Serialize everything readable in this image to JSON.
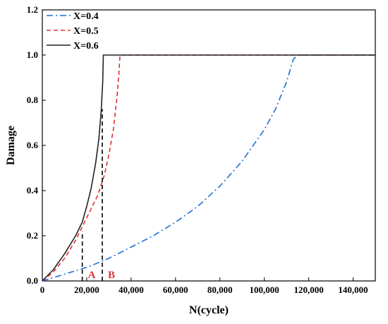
{
  "chart_data": {
    "type": "line",
    "title": "",
    "xlabel": "N(cycle)",
    "ylabel": "Damage",
    "xlim": [
      0,
      150000
    ],
    "ylim": [
      0,
      1.2
    ],
    "xticks": [
      0,
      20000,
      40000,
      60000,
      80000,
      100000,
      120000,
      140000
    ],
    "xtick_labels": [
      "0",
      "20,000",
      "40,000",
      "60,000",
      "80,000",
      "100,000",
      "120,000",
      "140,000"
    ],
    "yticks": [
      0,
      0.2,
      0.4,
      0.6,
      0.8,
      1.0,
      1.2
    ],
    "ytick_labels": [
      "0.0",
      "0.2",
      "0.4",
      "0.6",
      "0.8",
      "1.0",
      "1.2"
    ],
    "legend_position": "top-left",
    "grid": false,
    "series": [
      {
        "name": "X=0.4",
        "color": "#1f6fd1",
        "dash": "dash-dot",
        "points": [
          [
            0,
            0
          ],
          [
            10000,
            0.03
          ],
          [
            20000,
            0.06
          ],
          [
            30000,
            0.1
          ],
          [
            40000,
            0.15
          ],
          [
            50000,
            0.2
          ],
          [
            60000,
            0.26
          ],
          [
            70000,
            0.33
          ],
          [
            80000,
            0.42
          ],
          [
            90000,
            0.53
          ],
          [
            100000,
            0.67
          ],
          [
            105000,
            0.76
          ],
          [
            110000,
            0.88
          ],
          [
            113000,
            0.98
          ],
          [
            115000,
            1.0
          ],
          [
            150000,
            1.0
          ]
        ]
      },
      {
        "name": "X=0.5",
        "color": "#e03030",
        "dash": "dashed",
        "points": [
          [
            0,
            0
          ],
          [
            5000,
            0.04
          ],
          [
            10000,
            0.1
          ],
          [
            15000,
            0.18
          ],
          [
            20000,
            0.28
          ],
          [
            25000,
            0.38
          ],
          [
            28000,
            0.47
          ],
          [
            30000,
            0.56
          ],
          [
            32000,
            0.67
          ],
          [
            33500,
            0.8
          ],
          [
            34500,
            0.92
          ],
          [
            35000,
            1.0
          ],
          [
            150000,
            1.0
          ]
        ]
      },
      {
        "name": "X=0.6",
        "color": "#222222",
        "dash": "solid",
        "points": [
          [
            0,
            0
          ],
          [
            5000,
            0.05
          ],
          [
            10000,
            0.12
          ],
          [
            15000,
            0.2
          ],
          [
            18000,
            0.26
          ],
          [
            20000,
            0.33
          ],
          [
            22000,
            0.41
          ],
          [
            24000,
            0.52
          ],
          [
            25500,
            0.63
          ],
          [
            26500,
            0.75
          ],
          [
            27200,
            0.88
          ],
          [
            27500,
            1.0
          ],
          [
            150000,
            1.0
          ]
        ]
      }
    ],
    "annotations": [
      {
        "label": "A",
        "x": 18000,
        "y_top": 0.22,
        "color": "#e03030"
      },
      {
        "label": "B",
        "x": 27000,
        "y_top": 0.76,
        "color": "#e03030"
      }
    ]
  }
}
